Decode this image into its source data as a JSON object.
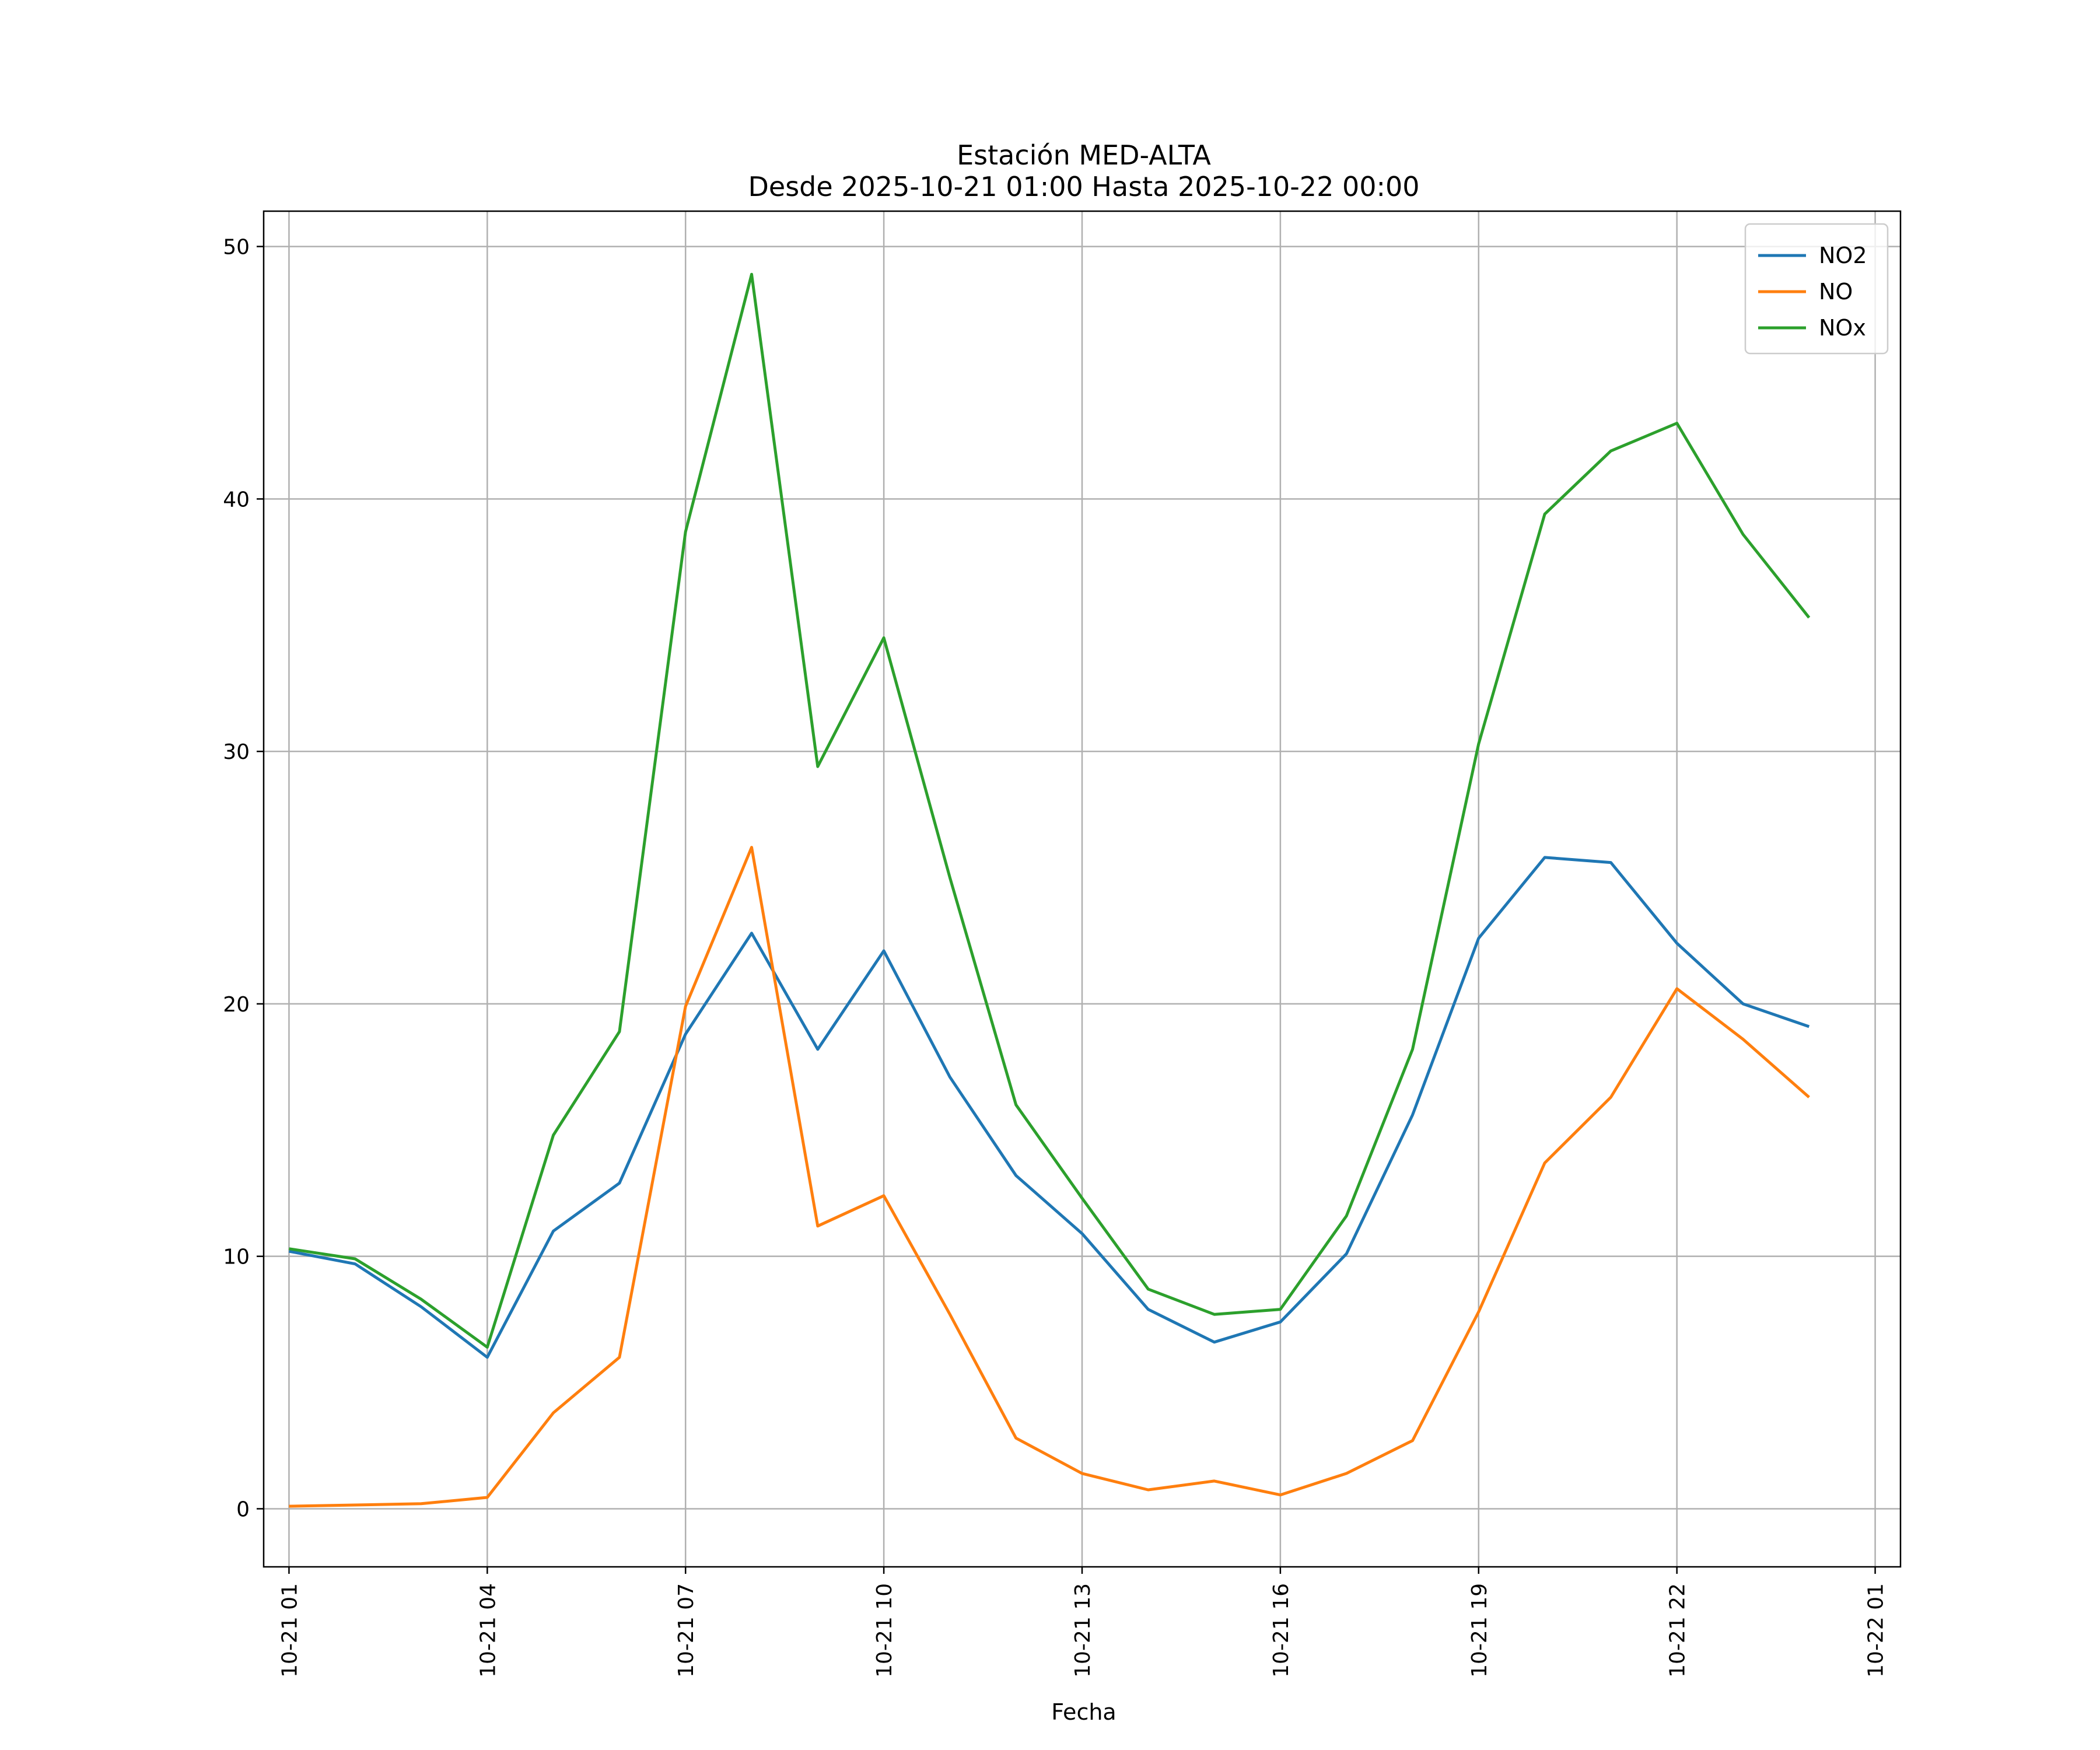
{
  "chart_data": {
    "type": "line",
    "title": "Estación MED-ALTA",
    "subtitle": "Desde 2025-10-21 01:00 Hasta 2025-10-22 00:00",
    "xlabel": "Fecha",
    "ylabel": "",
    "grid": true,
    "legend_position": "top-right",
    "xlim": [
      "2025-10-21 00:37",
      "2025-10-22 01:23"
    ],
    "ylim": [
      -2.3,
      51.4
    ],
    "x_ticks": [
      {
        "value": "2025-10-21 01:00",
        "label": "10-21 01"
      },
      {
        "value": "2025-10-21 04:00",
        "label": "10-21 04"
      },
      {
        "value": "2025-10-21 07:00",
        "label": "10-21 07"
      },
      {
        "value": "2025-10-21 10:00",
        "label": "10-21 10"
      },
      {
        "value": "2025-10-21 13:00",
        "label": "10-21 13"
      },
      {
        "value": "2025-10-21 16:00",
        "label": "10-21 16"
      },
      {
        "value": "2025-10-21 19:00",
        "label": "10-21 19"
      },
      {
        "value": "2025-10-21 22:00",
        "label": "10-21 22"
      },
      {
        "value": "2025-10-22 01:00",
        "label": "10-22 01"
      }
    ],
    "y_ticks": [
      0,
      10,
      20,
      30,
      40,
      50
    ],
    "x": [
      "2025-10-21 01:00",
      "2025-10-21 02:00",
      "2025-10-21 03:00",
      "2025-10-21 04:00",
      "2025-10-21 05:00",
      "2025-10-21 06:00",
      "2025-10-21 07:00",
      "2025-10-21 08:00",
      "2025-10-21 09:00",
      "2025-10-21 10:00",
      "2025-10-21 11:00",
      "2025-10-21 12:00",
      "2025-10-21 13:00",
      "2025-10-21 14:00",
      "2025-10-21 15:00",
      "2025-10-21 16:00",
      "2025-10-21 17:00",
      "2025-10-21 18:00",
      "2025-10-21 19:00",
      "2025-10-21 20:00",
      "2025-10-21 21:00",
      "2025-10-21 22:00",
      "2025-10-21 23:00",
      "2025-10-22 00:00"
    ],
    "series": [
      {
        "name": "NO2",
        "color": "#1f77b4",
        "values": [
          10.2,
          9.7,
          8.0,
          6.0,
          11.0,
          12.9,
          18.8,
          22.8,
          18.2,
          22.1,
          17.1,
          13.2,
          10.9,
          7.9,
          6.6,
          7.4,
          10.1,
          15.6,
          22.6,
          25.8,
          25.6,
          22.4,
          20.0,
          19.1
        ]
      },
      {
        "name": "NO",
        "color": "#ff7f0e",
        "values": [
          0.1,
          0.15,
          0.2,
          0.45,
          3.8,
          6.0,
          19.9,
          26.2,
          11.2,
          12.4,
          7.7,
          2.8,
          1.4,
          0.75,
          1.1,
          0.55,
          1.4,
          2.7,
          7.8,
          13.7,
          16.3,
          20.6,
          18.6,
          16.3
        ]
      },
      {
        "name": "NOx",
        "color": "#2ca02c",
        "values": [
          10.3,
          9.9,
          8.3,
          6.4,
          14.8,
          18.9,
          38.7,
          48.9,
          29.4,
          34.5,
          25.0,
          16.0,
          12.3,
          8.7,
          7.7,
          7.9,
          11.6,
          18.2,
          30.3,
          39.4,
          41.9,
          43.0,
          38.6,
          35.3
        ]
      }
    ]
  }
}
